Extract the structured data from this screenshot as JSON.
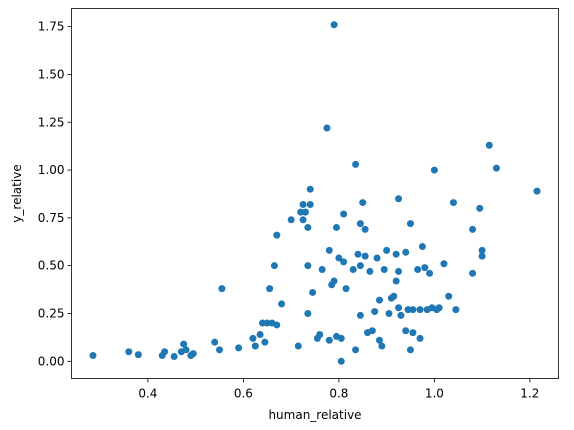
{
  "chart_data": {
    "type": "scatter",
    "title": "",
    "xlabel": "human_relative",
    "ylabel": "y_relative",
    "xlim": [
      0.24,
      1.26
    ],
    "ylim": [
      -0.09,
      1.845
    ],
    "xticks": [
      "0.4",
      "0.6",
      "0.8",
      "1.0",
      "1.2"
    ],
    "yticks": [
      "0.00",
      "0.25",
      "0.50",
      "0.75",
      "1.00",
      "1.25",
      "1.50",
      "1.75"
    ],
    "grid": false,
    "marker_color": "#1f77b4",
    "series": [
      {
        "points": [
          [
            0.285,
            0.03
          ],
          [
            0.36,
            0.05
          ],
          [
            0.38,
            0.035
          ],
          [
            0.43,
            0.03
          ],
          [
            0.435,
            0.05
          ],
          [
            0.455,
            0.025
          ],
          [
            0.47,
            0.05
          ],
          [
            0.475,
            0.09
          ],
          [
            0.48,
            0.06
          ],
          [
            0.49,
            0.03
          ],
          [
            0.495,
            0.04
          ],
          [
            0.54,
            0.1
          ],
          [
            0.55,
            0.06
          ],
          [
            0.555,
            0.38
          ],
          [
            0.59,
            0.07
          ],
          [
            0.62,
            0.12
          ],
          [
            0.625,
            0.08
          ],
          [
            0.635,
            0.14
          ],
          [
            0.64,
            0.2
          ],
          [
            0.645,
            0.1
          ],
          [
            0.65,
            0.2
          ],
          [
            0.655,
            0.38
          ],
          [
            0.66,
            0.2
          ],
          [
            0.665,
            0.5
          ],
          [
            0.67,
            0.19
          ],
          [
            0.67,
            0.66
          ],
          [
            0.68,
            0.3
          ],
          [
            0.7,
            0.74
          ],
          [
            0.715,
            0.08
          ],
          [
            0.72,
            0.78
          ],
          [
            0.725,
            0.74
          ],
          [
            0.725,
            0.82
          ],
          [
            0.73,
            0.78
          ],
          [
            0.735,
            0.7
          ],
          [
            0.735,
            0.25
          ],
          [
            0.735,
            0.5
          ],
          [
            0.74,
            0.9
          ],
          [
            0.74,
            0.82
          ],
          [
            0.745,
            0.36
          ],
          [
            0.755,
            0.12
          ],
          [
            0.76,
            0.14
          ],
          [
            0.765,
            0.48
          ],
          [
            0.775,
            1.22
          ],
          [
            0.78,
            0.58
          ],
          [
            0.78,
            0.11
          ],
          [
            0.785,
            0.4
          ],
          [
            0.79,
            0.42
          ],
          [
            0.79,
            1.76
          ],
          [
            0.795,
            0.13
          ],
          [
            0.795,
            0.7
          ],
          [
            0.8,
            0.54
          ],
          [
            0.805,
            0.12
          ],
          [
            0.805,
            0.0
          ],
          [
            0.81,
            0.77
          ],
          [
            0.81,
            0.52
          ],
          [
            0.815,
            0.38
          ],
          [
            0.83,
            0.48
          ],
          [
            0.835,
            0.06
          ],
          [
            0.835,
            1.03
          ],
          [
            0.84,
            0.56
          ],
          [
            0.845,
            0.5
          ],
          [
            0.845,
            0.72
          ],
          [
            0.845,
            0.24
          ],
          [
            0.85,
            0.83
          ],
          [
            0.855,
            0.55
          ],
          [
            0.855,
            0.69
          ],
          [
            0.86,
            0.15
          ],
          [
            0.865,
            0.47
          ],
          [
            0.87,
            0.16
          ],
          [
            0.875,
            0.26
          ],
          [
            0.88,
            0.54
          ],
          [
            0.885,
            0.11
          ],
          [
            0.885,
            0.32
          ],
          [
            0.89,
            0.08
          ],
          [
            0.895,
            0.48
          ],
          [
            0.9,
            0.58
          ],
          [
            0.905,
            0.25
          ],
          [
            0.91,
            0.33
          ],
          [
            0.915,
            0.34
          ],
          [
            0.92,
            0.56
          ],
          [
            0.92,
            0.42
          ],
          [
            0.925,
            0.47
          ],
          [
            0.925,
            0.28
          ],
          [
            0.925,
            0.85
          ],
          [
            0.93,
            0.24
          ],
          [
            0.94,
            0.57
          ],
          [
            0.94,
            0.16
          ],
          [
            0.945,
            0.27
          ],
          [
            0.95,
            0.72
          ],
          [
            0.95,
            0.06
          ],
          [
            0.955,
            0.15
          ],
          [
            0.955,
            0.27
          ],
          [
            0.965,
            0.48
          ],
          [
            0.97,
            0.12
          ],
          [
            0.97,
            0.27
          ],
          [
            0.975,
            0.6
          ],
          [
            0.98,
            0.49
          ],
          [
            0.985,
            0.27
          ],
          [
            0.99,
            0.46
          ],
          [
            0.995,
            0.28
          ],
          [
            1.0,
            1.0
          ],
          [
            1.005,
            0.27
          ],
          [
            1.01,
            0.28
          ],
          [
            1.02,
            0.51
          ],
          [
            1.03,
            0.34
          ],
          [
            1.04,
            0.83
          ],
          [
            1.045,
            0.27
          ],
          [
            1.08,
            0.69
          ],
          [
            1.08,
            0.46
          ],
          [
            1.095,
            0.8
          ],
          [
            1.1,
            0.55
          ],
          [
            1.1,
            0.58
          ],
          [
            1.115,
            1.13
          ],
          [
            1.13,
            1.01
          ],
          [
            1.215,
            0.89
          ]
        ]
      }
    ]
  }
}
